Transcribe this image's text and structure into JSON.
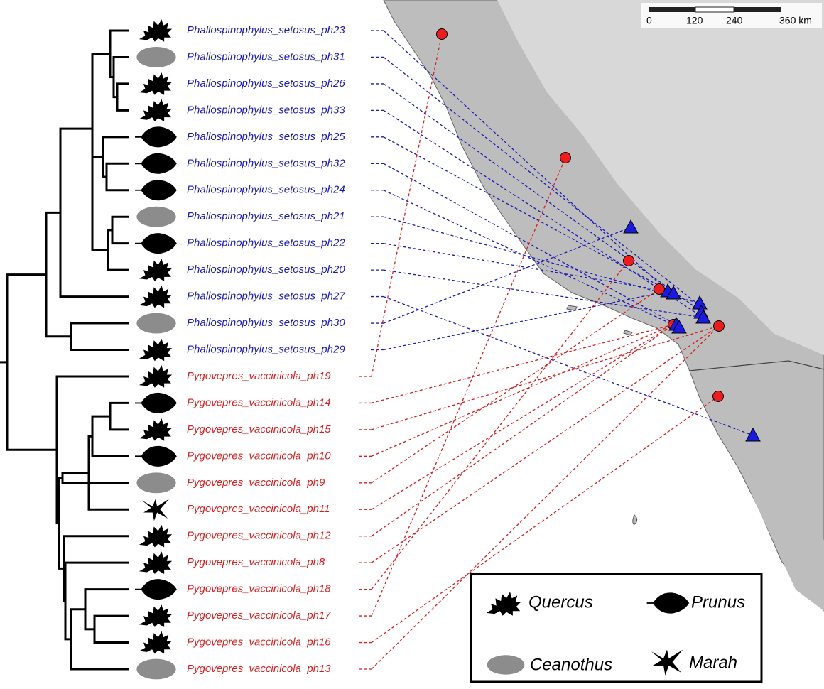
{
  "taxa": [
    {
      "label": "Phallospinophylus_setosus_ph23"
    },
    {
      "label": "Phallospinophylus_setosus_ph31"
    },
    {
      "label": "Phallospinophylus_setosus_ph26"
    },
    {
      "label": "Phallospinophylus_setosus_ph33"
    },
    {
      "label": "Phallospinophylus_setosus_ph25"
    },
    {
      "label": "Phallospinophylus_setosus_ph32"
    },
    {
      "label": "Phallospinophylus_setosus_ph24"
    },
    {
      "label": "Phallospinophylus_setosus_ph21"
    },
    {
      "label": "Phallospinophylus_setosus_ph22"
    },
    {
      "label": "Phallospinophylus_setosus_ph20"
    },
    {
      "label": "Phallospinophylus_setosus_ph27"
    },
    {
      "label": "Phallospinophylus_setosus_ph30"
    },
    {
      "label": "Phallospinophylus_setosus_ph29"
    },
    {
      "label": "Pygovepres_vaccinicola_ph19"
    },
    {
      "label": "Pygovepres_vaccinicola_ph14"
    },
    {
      "label": "Pygovepres_vaccinicola_ph15"
    },
    {
      "label": "Pygovepres_vaccinicola_ph10"
    },
    {
      "label": "Pygovepres_vaccinicola_ph9"
    },
    {
      "label": "Pygovepres_vaccinicola_ph11"
    },
    {
      "label": "Pygovepres_vaccinicola_ph12"
    },
    {
      "label": "Pygovepres_vaccinicola_ph8"
    },
    {
      "label": "Pygovepres_vaccinicola_ph18"
    },
    {
      "label": "Pygovepres_vaccinicola_ph17"
    },
    {
      "label": "Pygovepres_vaccinicola_ph16"
    },
    {
      "label": "Pygovepres_vaccinicola_ph13"
    }
  ],
  "legend": [
    {
      "label": "Quercus"
    },
    {
      "label": "Prunus"
    },
    {
      "label": "Ceanothus"
    },
    {
      "label": "Marah"
    }
  ],
  "scale_bar": [
    "0",
    "120",
    "240",
    "360 km"
  ]
}
